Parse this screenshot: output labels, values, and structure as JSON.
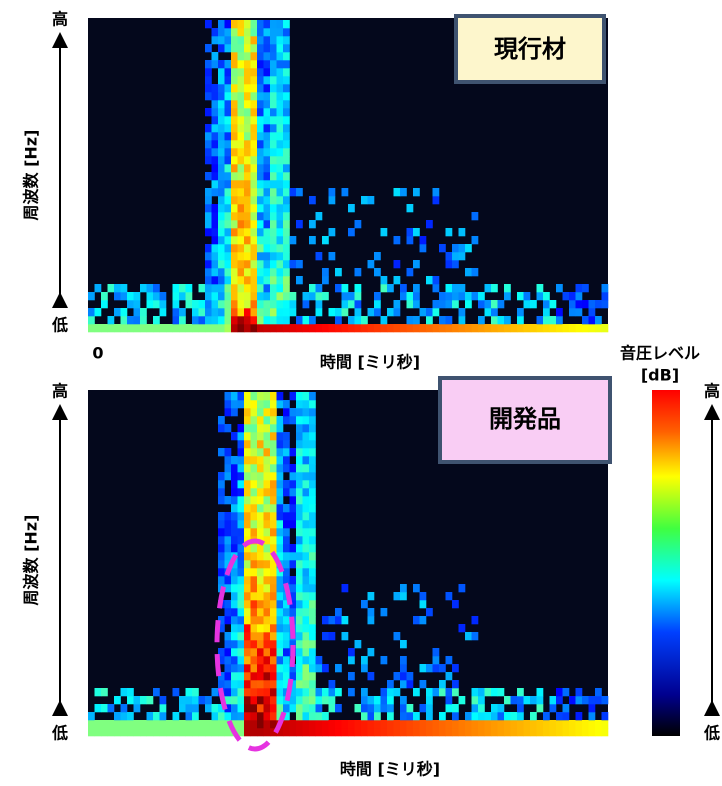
{
  "chart_data": [
    {
      "type": "spectrogram",
      "title": "現行材",
      "ylabel": "周波数 [Hz]",
      "y_high": "高",
      "y_low": "低",
      "x_start": "0",
      "xlabel": "時間 [ミリ秒]"
    },
    {
      "type": "spectrogram",
      "title": "開発品",
      "ylabel": "周波数 [Hz]",
      "y_high": "高",
      "y_low": "低",
      "xlabel": "時間 [ミリ秒]",
      "colorbar": {
        "label": "音圧レベル",
        "unit": "[dB]",
        "high": "高",
        "low": "低"
      }
    }
  ]
}
